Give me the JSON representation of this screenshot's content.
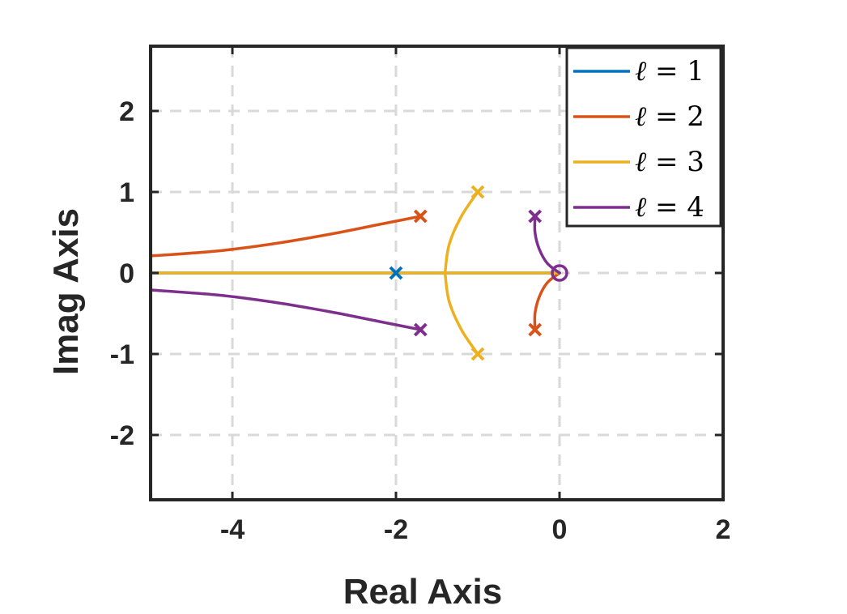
{
  "chart_data": {
    "type": "line",
    "title": "",
    "xlabel": "Real Axis",
    "ylabel": "Imag Axis",
    "xlim": [
      -5,
      2
    ],
    "ylim": [
      -2.8,
      2.8
    ],
    "xticks": [
      -4,
      -2,
      0,
      2
    ],
    "yticks": [
      -2,
      -1,
      0,
      1,
      2
    ],
    "xtick_labels": [
      "-4",
      "-2",
      "0",
      "2"
    ],
    "ytick_labels": [
      "-2",
      "-1",
      "0",
      "1",
      "2"
    ],
    "grid": true,
    "legend_position": "top-right",
    "legend": [
      {
        "symbol": "ℓ",
        "text": " = 1"
      },
      {
        "symbol": "ℓ",
        "text": " = 2"
      },
      {
        "symbol": "ℓ",
        "text": " = 3"
      },
      {
        "symbol": "ℓ",
        "text": " = 4"
      }
    ],
    "zero": {
      "x": 0,
      "y": 0
    },
    "series": [
      {
        "color": "#0072BD",
        "poles": [
          {
            "x": -2,
            "y": 0
          }
        ],
        "branches": [
          [
            [
              -2,
              0
            ],
            [
              0,
              0
            ]
          ],
          [
            [
              -2,
              0
            ],
            [
              -5,
              0
            ]
          ]
        ]
      },
      {
        "color": "#D95319",
        "poles": [
          {
            "x": -1.7,
            "y": 0.7
          },
          {
            "x": -0.3,
            "y": -0.7
          }
        ],
        "branches": [
          [
            [
              -1.7,
              0.7
            ],
            [
              -2.2,
              0.6
            ],
            [
              -2.8,
              0.48
            ],
            [
              -3.5,
              0.36
            ],
            [
              -4.2,
              0.27
            ],
            [
              -5,
              0.21
            ]
          ],
          [
            [
              -0.3,
              -0.7
            ],
            [
              -0.3,
              -0.5
            ],
            [
              -0.25,
              -0.3
            ],
            [
              -0.15,
              -0.12
            ],
            [
              0,
              0
            ]
          ]
        ]
      },
      {
        "color": "#EDB120",
        "poles": [
          {
            "x": -1,
            "y": 1
          },
          {
            "x": -1,
            "y": -1
          }
        ],
        "branches": [
          [
            [
              -1,
              1
            ],
            [
              -1.2,
              0.7
            ],
            [
              -1.35,
              0.35
            ],
            [
              -1.4,
              0
            ]
          ],
          [
            [
              -1,
              -1
            ],
            [
              -1.2,
              -0.7
            ],
            [
              -1.35,
              -0.35
            ],
            [
              -1.4,
              0
            ]
          ],
          [
            [
              -1.4,
              0
            ],
            [
              0,
              0
            ]
          ],
          [
            [
              -1.4,
              0
            ],
            [
              -5,
              0
            ]
          ]
        ]
      },
      {
        "color": "#7E2F8E",
        "poles": [
          {
            "x": -1.7,
            "y": -0.7
          },
          {
            "x": -0.3,
            "y": 0.7
          }
        ],
        "branches": [
          [
            [
              -1.7,
              -0.7
            ],
            [
              -2.2,
              -0.6
            ],
            [
              -2.8,
              -0.48
            ],
            [
              -3.5,
              -0.36
            ],
            [
              -4.2,
              -0.27
            ],
            [
              -5,
              -0.21
            ]
          ],
          [
            [
              -0.3,
              0.7
            ],
            [
              -0.3,
              0.5
            ],
            [
              -0.25,
              0.3
            ],
            [
              -0.15,
              0.12
            ],
            [
              0,
              0
            ]
          ]
        ]
      }
    ]
  }
}
